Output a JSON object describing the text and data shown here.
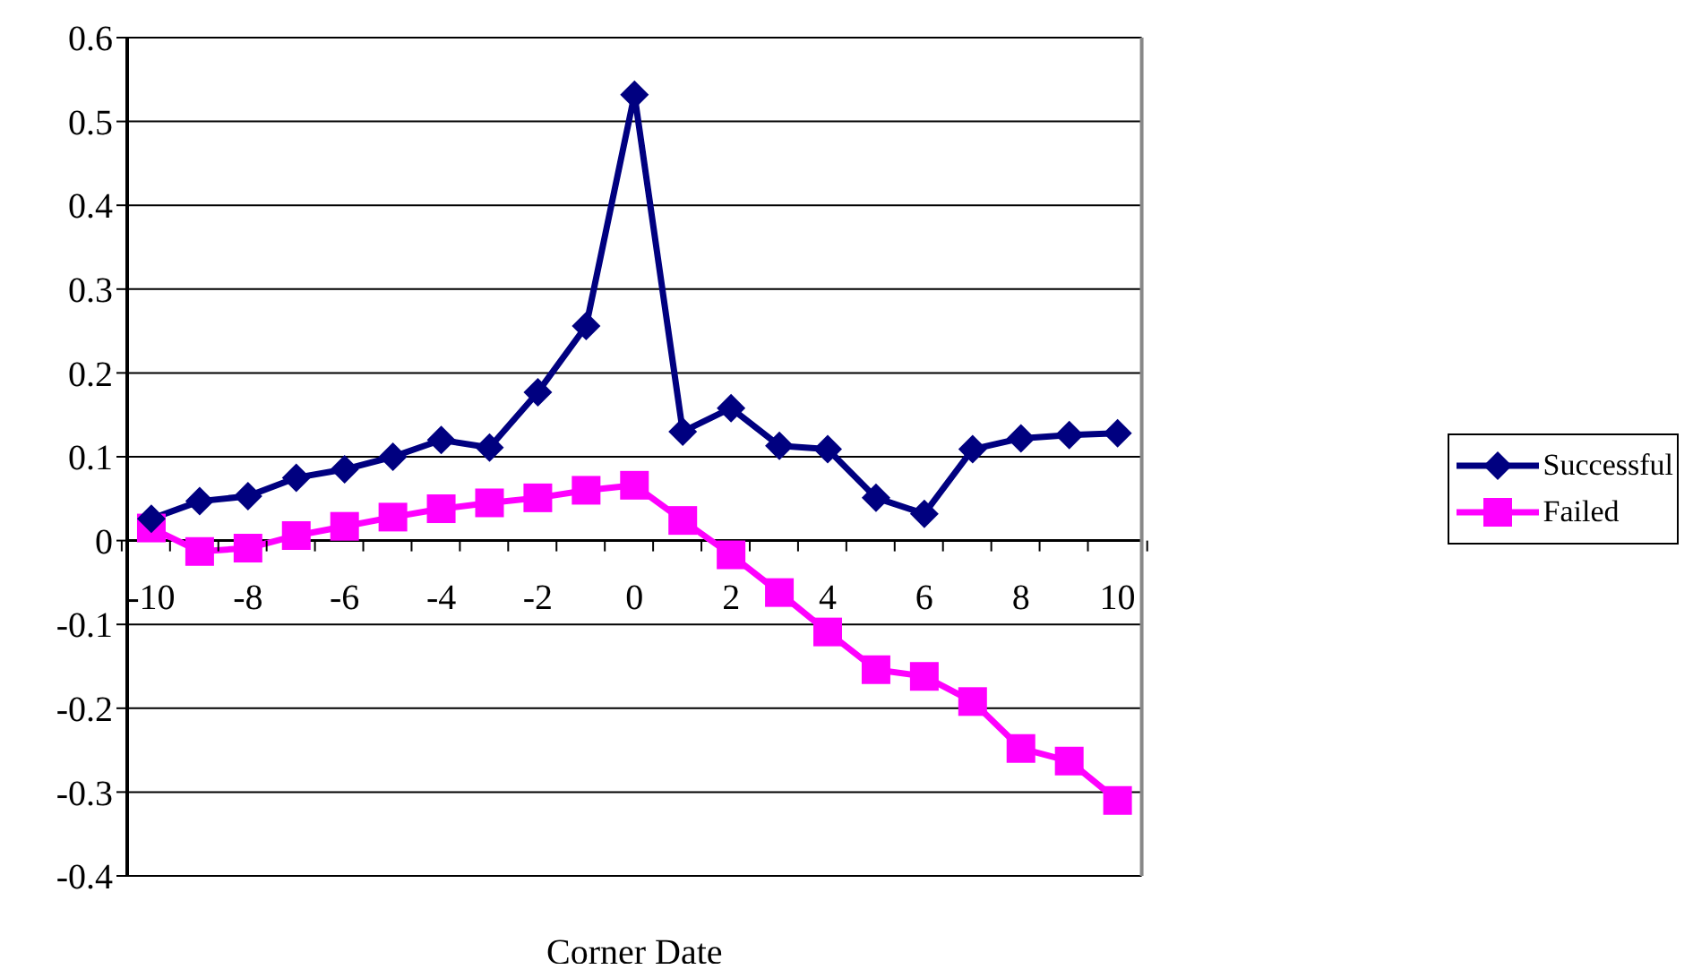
{
  "chart_data": {
    "type": "line",
    "xlabel": "Corner Date",
    "categories": [
      "-10",
      null,
      "-8",
      null,
      "-6",
      null,
      "-4",
      null,
      "-2",
      null,
      "0",
      null,
      "2",
      null,
      "4",
      null,
      "6",
      null,
      "8",
      null,
      "10"
    ],
    "series": [
      {
        "name": "Successful",
        "color": "#000080",
        "marker": "diamond",
        "values": [
          0.026,
          0.047,
          0.053,
          0.075,
          0.085,
          0.1,
          0.12,
          0.111,
          0.177,
          0.256,
          0.532,
          0.13,
          0.158,
          0.113,
          0.109,
          0.051,
          0.032,
          0.109,
          0.122,
          0.126,
          0.128
        ]
      },
      {
        "name": "Failed",
        "color": "#ff00ff",
        "marker": "square",
        "values": [
          0.015,
          -0.013,
          -0.009,
          0.006,
          0.017,
          0.028,
          0.038,
          0.045,
          0.051,
          0.06,
          0.066,
          0.024,
          -0.017,
          -0.062,
          -0.109,
          -0.154,
          -0.162,
          -0.192,
          -0.248,
          -0.263,
          -0.31
        ]
      }
    ],
    "ylim": [
      -0.4,
      0.6
    ],
    "yticks": [
      -0.4,
      -0.3,
      -0.2,
      -0.1,
      0,
      0.1,
      0.2,
      0.3,
      0.4,
      0.5,
      0.6
    ],
    "grid": "y",
    "legend": "right",
    "line_style": "solid"
  }
}
